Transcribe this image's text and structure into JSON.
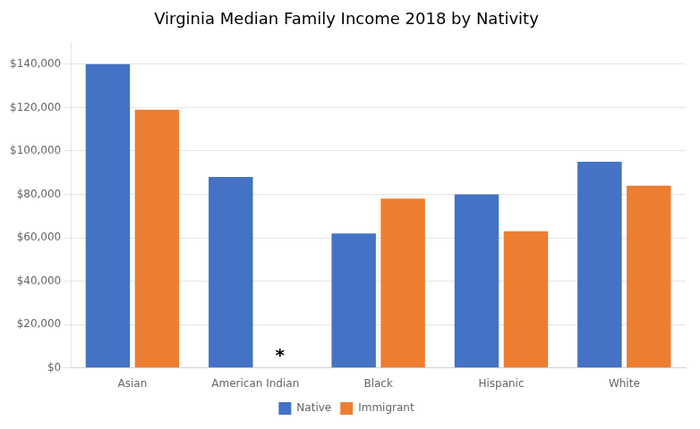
{
  "chart_data": {
    "type": "bar",
    "title": "Virginia Median Family Income 2018 by Nativity",
    "categories": [
      "Asian",
      "American Indian",
      "Black",
      "Hispanic",
      "White"
    ],
    "series": [
      {
        "name": "Native",
        "color": "#4472C4",
        "values": [
          140000,
          88000,
          62000,
          80000,
          95000
        ]
      },
      {
        "name": "Immigrant",
        "color": "#ED7D31",
        "values": [
          119000,
          null,
          78000,
          63000,
          84000
        ]
      }
    ],
    "ylim": [
      0,
      150000
    ],
    "yticks": [
      {
        "value": 0,
        "label": "$0"
      },
      {
        "value": 20000,
        "label": "$20,000"
      },
      {
        "value": 40000,
        "label": "$40,000"
      },
      {
        "value": 60000,
        "label": "$60,000"
      },
      {
        "value": 80000,
        "label": "$80,000"
      },
      {
        "value": 100000,
        "label": "$100,000"
      },
      {
        "value": 120000,
        "label": "$120,000"
      },
      {
        "value": 140000,
        "label": "$140,000"
      }
    ],
    "grid": true,
    "legend": "bottom",
    "annotations": [
      {
        "text": "*",
        "category": "American Indian",
        "series": "Immigrant"
      }
    ]
  }
}
